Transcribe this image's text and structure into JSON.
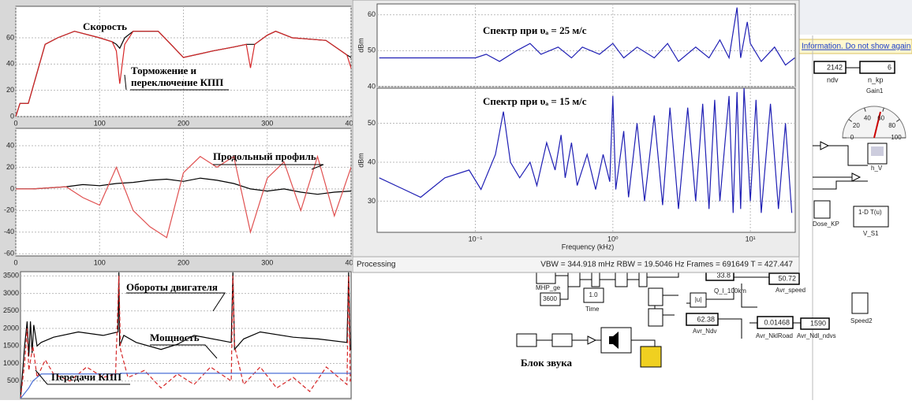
{
  "scopes": [
    {
      "xlim": [
        0,
        400
      ],
      "ylim": [
        0,
        84
      ],
      "xticks": [
        0,
        100,
        200,
        300,
        400
      ],
      "yticks": [
        0,
        20,
        40,
        60
      ],
      "annotations": [
        "Скорость",
        "Торможение и",
        "переключение КПП"
      ],
      "series": [
        {
          "color": "#000000",
          "x": [
            0,
            5,
            15,
            35,
            50,
            70,
            100,
            115,
            120,
            124,
            130,
            140,
            170,
            185,
            200,
            235,
            260,
            275,
            280,
            285,
            300,
            310,
            330,
            370,
            395,
            400,
            405,
            420
          ],
          "values": [
            0,
            10,
            10,
            55,
            60,
            65,
            60,
            57,
            55,
            52,
            60,
            65,
            65,
            55,
            45,
            50,
            53,
            55,
            55,
            55,
            62,
            65,
            60,
            58,
            47,
            45,
            44,
            44
          ]
        },
        {
          "color": "#d62728",
          "x": [
            0,
            5,
            15,
            35,
            50,
            70,
            100,
            115,
            120,
            124,
            130,
            140,
            170,
            185,
            200,
            235,
            260,
            275,
            280,
            285,
            300,
            310,
            330,
            370,
            395,
            400,
            405,
            420
          ],
          "values": [
            0,
            10,
            10,
            55,
            60,
            65,
            60,
            57,
            50,
            25,
            55,
            65,
            65,
            55,
            45,
            50,
            53,
            55,
            37,
            55,
            62,
            65,
            60,
            58,
            47,
            37,
            44,
            44
          ]
        }
      ]
    },
    {
      "xlim": [
        0,
        400
      ],
      "ylim": [
        -62,
        56
      ],
      "xticks": [
        0,
        100,
        200,
        300,
        400
      ],
      "yticks": [
        -60,
        -40,
        -20,
        0,
        20,
        40
      ],
      "annotations": [
        "Продольный профиль"
      ],
      "series": [
        {
          "color": "#000000",
          "x": [
            0,
            20,
            40,
            60,
            80,
            100,
            120,
            140,
            160,
            180,
            200,
            220,
            240,
            260,
            280,
            300,
            320,
            340,
            360,
            380,
            400,
            420
          ],
          "values": [
            0,
            0,
            1,
            2,
            4,
            3,
            5,
            6,
            8,
            9,
            7,
            10,
            8,
            5,
            0,
            -2,
            0,
            -3,
            -5,
            -3,
            -2,
            -4
          ]
        },
        {
          "color": "#e05050",
          "x": [
            0,
            20,
            40,
            60,
            80,
            100,
            120,
            140,
            160,
            180,
            200,
            220,
            240,
            260,
            280,
            300,
            320,
            340,
            360,
            380,
            400,
            420
          ],
          "values": [
            0,
            0,
            1,
            2,
            -8,
            -15,
            20,
            -20,
            -35,
            -45,
            15,
            30,
            20,
            30,
            -40,
            10,
            25,
            -20,
            30,
            -25,
            20,
            40
          ]
        }
      ]
    },
    {
      "xlim": [
        0,
        400
      ],
      "ylim": [
        0,
        3620
      ],
      "yticks": [
        500,
        1000,
        1500,
        2000,
        2500,
        3000,
        3500
      ],
      "annotations": [
        "Обороты двигателя",
        "Мощность",
        "Передачи КПП"
      ],
      "series": [
        {
          "color": "#000000",
          "x": [
            0,
            5,
            8,
            10,
            12,
            14,
            16,
            20,
            25,
            40,
            70,
            100,
            118,
            119,
            120,
            125,
            140,
            170,
            190,
            210,
            255,
            257,
            259,
            270,
            290,
            330,
            360,
            395,
            397,
            399,
            420
          ],
          "values": [
            0,
            1500,
            2200,
            1200,
            2200,
            1300,
            2100,
            1500,
            1600,
            1750,
            1900,
            1800,
            1900,
            3600,
            1500,
            1800,
            1600,
            1400,
            1550,
            1800,
            1600,
            3600,
            1400,
            1700,
            1900,
            1750,
            1700,
            1600,
            3600,
            1400,
            1300
          ]
        },
        {
          "color": "#d62728",
          "style": "dashed",
          "x": [
            0,
            5,
            8,
            10,
            15,
            20,
            30,
            40,
            60,
            80,
            100,
            115,
            119,
            121,
            130,
            150,
            170,
            190,
            210,
            230,
            255,
            257,
            259,
            270,
            290,
            310,
            330,
            350,
            370,
            395,
            397,
            399,
            420
          ],
          "values": [
            0,
            1000,
            2000,
            800,
            1500,
            600,
            1100,
            700,
            500,
            900,
            600,
            700,
            3500,
            1400,
            600,
            800,
            300,
            700,
            400,
            900,
            500,
            3500,
            1500,
            400,
            900,
            300,
            600,
            200,
            900,
            400,
            3500,
            500,
            600
          ]
        },
        {
          "color": "#4a6fd6",
          "x": [
            0,
            10,
            15,
            20,
            25,
            120,
            121,
            420
          ],
          "values": [
            0,
            300,
            500,
            600,
            700,
            700,
            720,
            720
          ]
        }
      ]
    }
  ],
  "spectrum": {
    "status": "Processing",
    "stats": "VBW = 344.918 mHz  RBW = 19.5046 Hz  Frames = 691649  T = 427.447",
    "xlabel": "Frequency (kHz)",
    "xlim": [
      0.0193,
      21.2
    ],
    "xticks": [
      {
        "value": 0.1,
        "label": "10⁻¹"
      },
      {
        "value": 1,
        "label": "10⁰"
      },
      {
        "value": 10,
        "label": "10¹"
      }
    ],
    "log_x": true,
    "plots": [
      {
        "ylabel": "dBm",
        "annotation": "Спектр при υₐ = 25 м/с",
        "ylim": [
          40,
          63
        ],
        "yticks": [
          40,
          50,
          60
        ],
        "color": "#1f1fb4",
        "x": [
          0.02,
          0.05,
          0.1,
          0.12,
          0.15,
          0.2,
          0.25,
          0.3,
          0.4,
          0.5,
          0.6,
          0.8,
          1,
          1.2,
          1.5,
          2,
          2.5,
          3,
          4,
          5,
          6,
          7,
          8,
          8.5,
          9.5,
          10,
          12,
          15,
          18,
          21
        ],
        "values": [
          48,
          48,
          48,
          49,
          47,
          50,
          52,
          49,
          51,
          48,
          51,
          49,
          52,
          48,
          51,
          48,
          52,
          47,
          51,
          48,
          53,
          48,
          62,
          48,
          58,
          52,
          47,
          51,
          46,
          48
        ]
      },
      {
        "ylabel": "dBm",
        "annotation": "Спектр при υₐ = 15 м/с",
        "ylim": [
          22,
          59
        ],
        "yticks": [
          30,
          40,
          50
        ],
        "color": "#1f1fb4",
        "x": [
          0.02,
          0.04,
          0.06,
          0.09,
          0.11,
          0.14,
          0.16,
          0.18,
          0.21,
          0.25,
          0.28,
          0.33,
          0.38,
          0.42,
          0.45,
          0.5,
          0.55,
          0.65,
          0.75,
          0.85,
          0.95,
          1.0,
          1.05,
          1.2,
          1.3,
          1.5,
          1.7,
          2,
          2.3,
          2.6,
          3,
          3.5,
          4,
          4.5,
          5,
          5.5,
          6,
          7,
          7.5,
          8,
          8.5,
          9,
          10,
          11,
          12,
          14,
          16,
          18,
          20
        ],
        "values": [
          36,
          31,
          36,
          38,
          33,
          42,
          53,
          40,
          36,
          40,
          34,
          45,
          38,
          47,
          36,
          45,
          34,
          42,
          33,
          42,
          35,
          57,
          33,
          48,
          31,
          50,
          30,
          52,
          29,
          54,
          28,
          54,
          30,
          55,
          28,
          56,
          30,
          57,
          27,
          58,
          28,
          59,
          30,
          56,
          27,
          55,
          28,
          50,
          27
        ]
      }
    ]
  },
  "simulink": {
    "info": "Information. Do not show again",
    "ndv_value": 2142,
    "ndv": "ndv",
    "nkp_value": 6,
    "nkp": "n_kp",
    "gain": "Gain1",
    "gauge_ticks": [
      0,
      20,
      40,
      60,
      80,
      100
    ],
    "h_v": "h_V",
    "dose": "Dose_KP",
    "vs1": "V_S1",
    "vs1_block": "1-D T(u)",
    "mhp": "MHP_ge",
    "const": 3600,
    "time": "Time",
    "one": "1.0",
    "q_value": 33.8,
    "q": "Q_l_100km",
    "speed_value": 50.72,
    "speed": "Avr_speed",
    "ndv2_value": 62.38,
    "avr_ndv": "Avr_Ndv",
    "nkl_value": 0.01468,
    "nkl": "Avr_NklRoad",
    "ndl_value": 1590,
    "ndl": "Avr_Ndl_ndvs",
    "speed2": "Speed2",
    "sound": "Блок звука",
    "abs": "|u|"
  }
}
